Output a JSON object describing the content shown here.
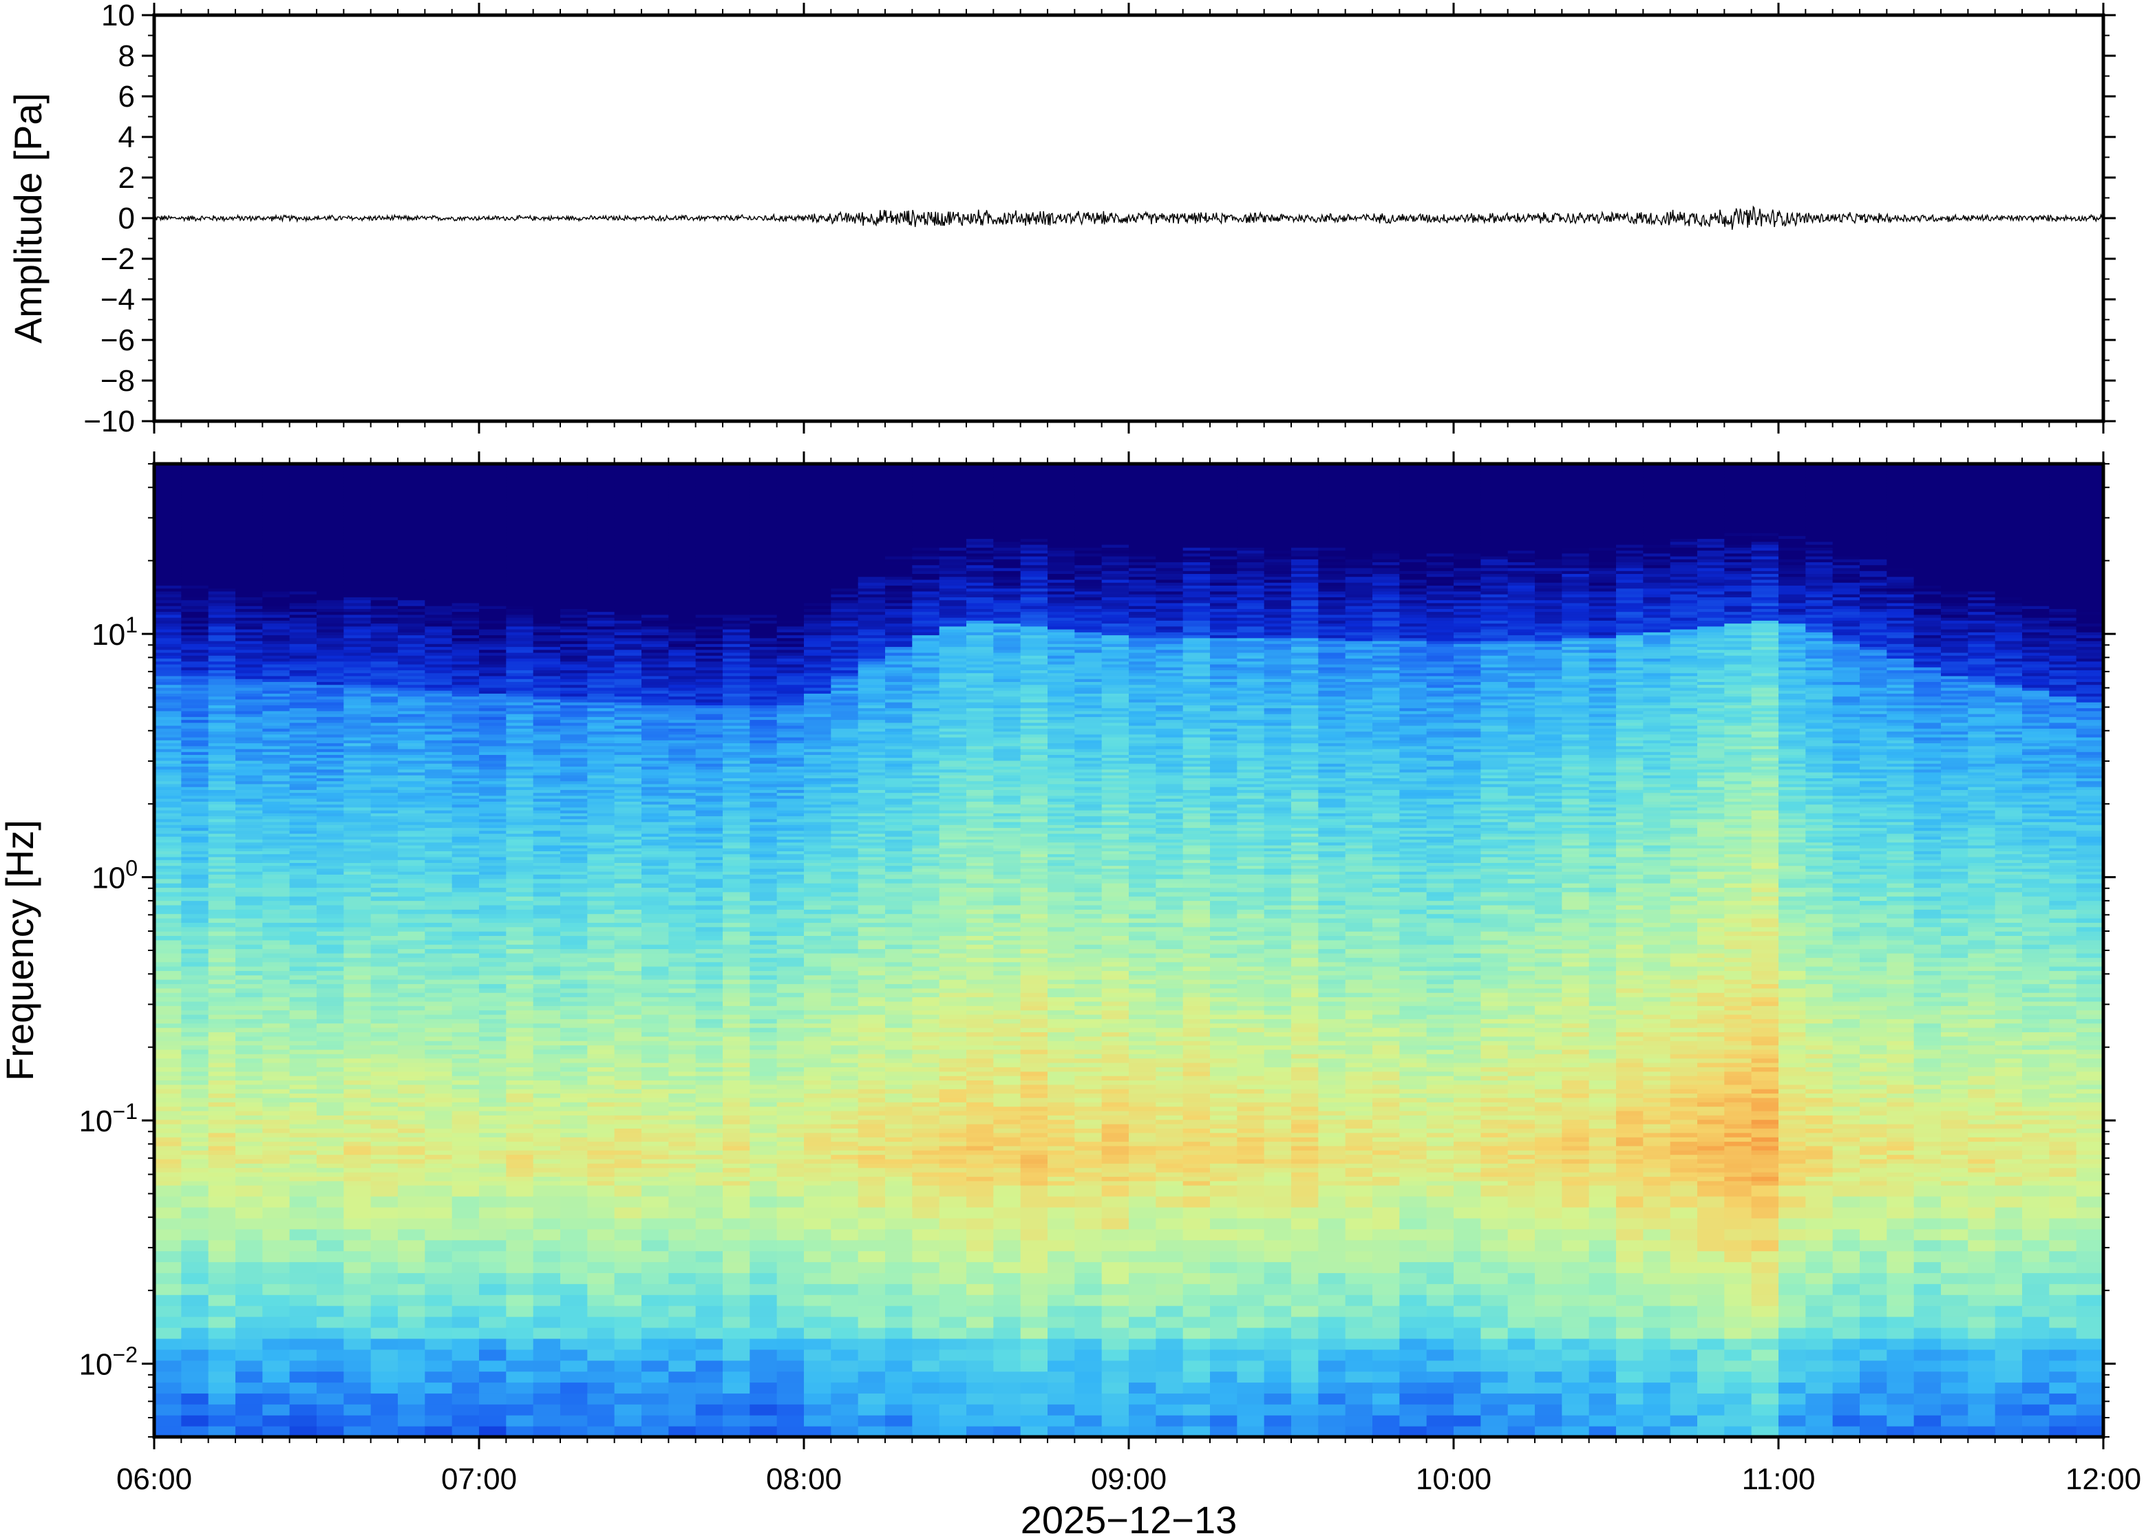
{
  "chart_data": [
    {
      "type": "line",
      "name": "waveform",
      "ylabel": "Amplitude [Pa]",
      "ylim": [
        -10,
        10
      ],
      "yticks": [
        10,
        8,
        6,
        4,
        2,
        0,
        -2,
        -4,
        -6,
        -8,
        -10
      ],
      "ytick_labels": [
        "10",
        "8",
        "6",
        "4",
        "2",
        "0",
        "−2",
        "−4",
        "−6",
        "−8",
        "−10"
      ],
      "x_range": [
        "06:00",
        "12:00"
      ],
      "series": [
        {
          "values_note_free": true,
          "envelope_x": [
            "06:00",
            "06:30",
            "07:00",
            "07:30",
            "08:00",
            "08:15",
            "08:30",
            "08:45",
            "09:00",
            "09:30",
            "10:00",
            "10:30",
            "10:45",
            "10:55",
            "11:05",
            "11:30",
            "12:00"
          ],
          "envelope_amp": [
            0.12,
            0.12,
            0.1,
            0.1,
            0.15,
            0.35,
            0.35,
            0.3,
            0.25,
            0.2,
            0.2,
            0.25,
            0.35,
            0.5,
            0.25,
            0.15,
            0.12
          ]
        }
      ]
    },
    {
      "type": "heatmap",
      "name": "spectrogram",
      "ylabel": "Frequency [Hz]",
      "yscale": "log",
      "ylim": [
        0.005,
        50
      ],
      "yticks": [
        0.01,
        0.1,
        1,
        10
      ],
      "ytick_labels": [
        {
          "base": "10",
          "exp": "−2"
        },
        {
          "base": "10",
          "exp": "−1"
        },
        {
          "base": "10",
          "exp": "0"
        },
        {
          "base": "10",
          "exp": "1"
        }
      ],
      "xlabel": "2025−12−13",
      "x_range": [
        "06:00",
        "12:00"
      ],
      "xticks": [
        "06:00",
        "07:00",
        "08:00",
        "09:00",
        "10:00",
        "11:00",
        "12:00"
      ],
      "colormap": [
        "#0a007a",
        "#0b2bd6",
        "#1e6cf2",
        "#35b6f6",
        "#5fdde3",
        "#9ff1bb",
        "#d4f48f",
        "#f5d56b",
        "#f7a448",
        "#f06b2b"
      ],
      "noise_floor_time": [
        "06:00",
        "06:30",
        "07:00",
        "07:30",
        "08:00",
        "08:30",
        "09:00",
        "09:30",
        "10:00",
        "10:30",
        "11:00",
        "11:30",
        "12:00"
      ],
      "noise_floor_top_hz": [
        12,
        11,
        10,
        9,
        9,
        20,
        17,
        17,
        16,
        17,
        20,
        12,
        9
      ]
    }
  ]
}
